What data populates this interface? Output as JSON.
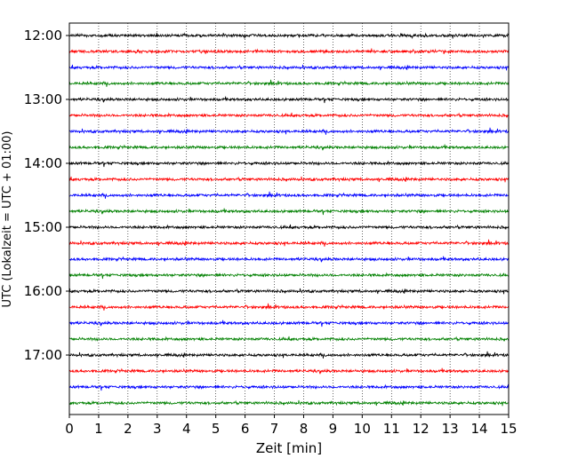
{
  "chart_data": {
    "type": "line",
    "title": "",
    "xlabel": "Zeit  [min]",
    "ylabel": "UTC (Lokalzeit = UTC + 01:00)",
    "xlim": [
      0,
      15
    ],
    "x_ticks": [
      "0",
      "1",
      "2",
      "3",
      "4",
      "5",
      "6",
      "7",
      "8",
      "9",
      "10",
      "11",
      "12",
      "13",
      "14",
      "15"
    ],
    "y_tick_labels": [
      "12:00",
      "13:00",
      "14:00",
      "15:00",
      "16:00",
      "17:00"
    ],
    "grid": "vertical dotted at each minute",
    "colors": [
      "#000000",
      "#ff0000",
      "#0000ff",
      "#008000"
    ],
    "traces": [
      {
        "start": "12:00",
        "color": "#000000"
      },
      {
        "start": "12:15",
        "color": "#ff0000"
      },
      {
        "start": "12:30",
        "color": "#0000ff"
      },
      {
        "start": "12:45",
        "color": "#008000"
      },
      {
        "start": "13:00",
        "color": "#000000"
      },
      {
        "start": "13:15",
        "color": "#ff0000"
      },
      {
        "start": "13:30",
        "color": "#0000ff"
      },
      {
        "start": "13:45",
        "color": "#008000"
      },
      {
        "start": "14:00",
        "color": "#000000"
      },
      {
        "start": "14:15",
        "color": "#ff0000"
      },
      {
        "start": "14:30",
        "color": "#0000ff"
      },
      {
        "start": "14:45",
        "color": "#008000"
      },
      {
        "start": "15:00",
        "color": "#000000"
      },
      {
        "start": "15:15",
        "color": "#ff0000"
      },
      {
        "start": "15:30",
        "color": "#0000ff"
      },
      {
        "start": "15:45",
        "color": "#008000"
      },
      {
        "start": "16:00",
        "color": "#000000"
      },
      {
        "start": "16:15",
        "color": "#ff0000"
      },
      {
        "start": "16:30",
        "color": "#0000ff"
      },
      {
        "start": "16:45",
        "color": "#008000"
      },
      {
        "start": "17:00",
        "color": "#000000"
      },
      {
        "start": "17:15",
        "color": "#ff0000"
      },
      {
        "start": "17:30",
        "color": "#0000ff"
      },
      {
        "start": "17:45",
        "color": "#008000"
      }
    ]
  }
}
